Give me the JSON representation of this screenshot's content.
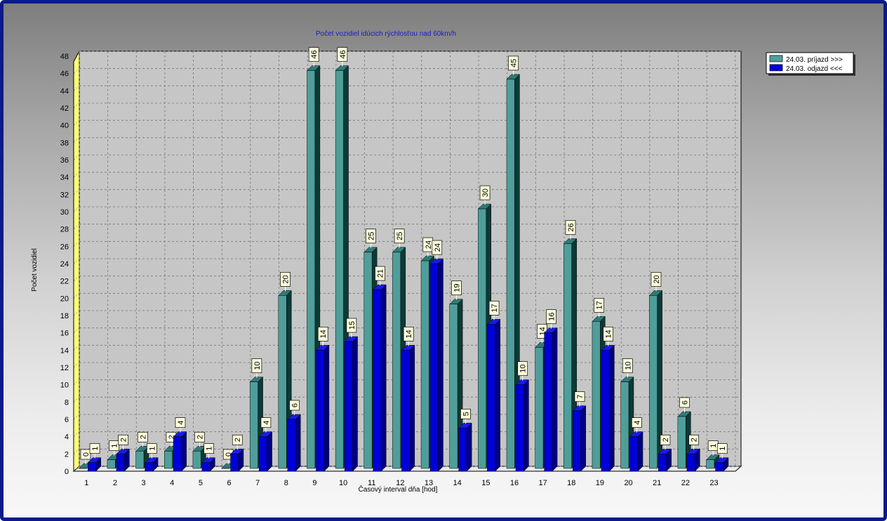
{
  "colors": {
    "frame": "#0a1a8a",
    "series1_front": "#4f9e9a",
    "series1_side": "#0c3a36",
    "series1_top": "#2f7a75",
    "series2_front": "#0000d8",
    "series2_side": "#000080",
    "series2_top": "#1a1ae8",
    "back_wall": "#c6c6c6",
    "left_wall": "#ffff80",
    "title_text": "#1a1ad0"
  },
  "chart_data": {
    "type": "bar",
    "title": "Počet vozidiel idúcich rýchlosťou nad 60km/h",
    "xlabel": "Časový interval dňa [hod]",
    "ylabel": "Počet vozidiel",
    "ylim": [
      0,
      48
    ],
    "yticks": [
      0,
      2,
      4,
      6,
      8,
      10,
      12,
      14,
      16,
      18,
      20,
      22,
      24,
      26,
      28,
      30,
      32,
      34,
      36,
      38,
      40,
      42,
      44,
      46,
      48
    ],
    "grid": true,
    "legend_position": "top-right",
    "categories": [
      "1",
      "2",
      "3",
      "4",
      "5",
      "6",
      "7",
      "8",
      "9",
      "10",
      "11",
      "12",
      "13",
      "14",
      "15",
      "16",
      "17",
      "18",
      "19",
      "20",
      "21",
      "22",
      "23"
    ],
    "series": [
      {
        "name": "24.03.  príjazd >>>",
        "values": [
          0,
          1,
          2,
          2,
          2,
          0,
          10,
          20,
          46,
          46,
          25,
          25,
          24,
          19,
          30,
          45,
          14,
          26,
          17,
          10,
          20,
          6,
          1
        ]
      },
      {
        "name": "24.03.  odjazd <<<",
        "values": [
          1,
          2,
          1,
          4,
          1,
          2,
          4,
          6,
          14,
          15,
          21,
          14,
          24,
          5,
          17,
          10,
          16,
          7,
          14,
          4,
          2,
          2,
          1
        ]
      }
    ]
  }
}
